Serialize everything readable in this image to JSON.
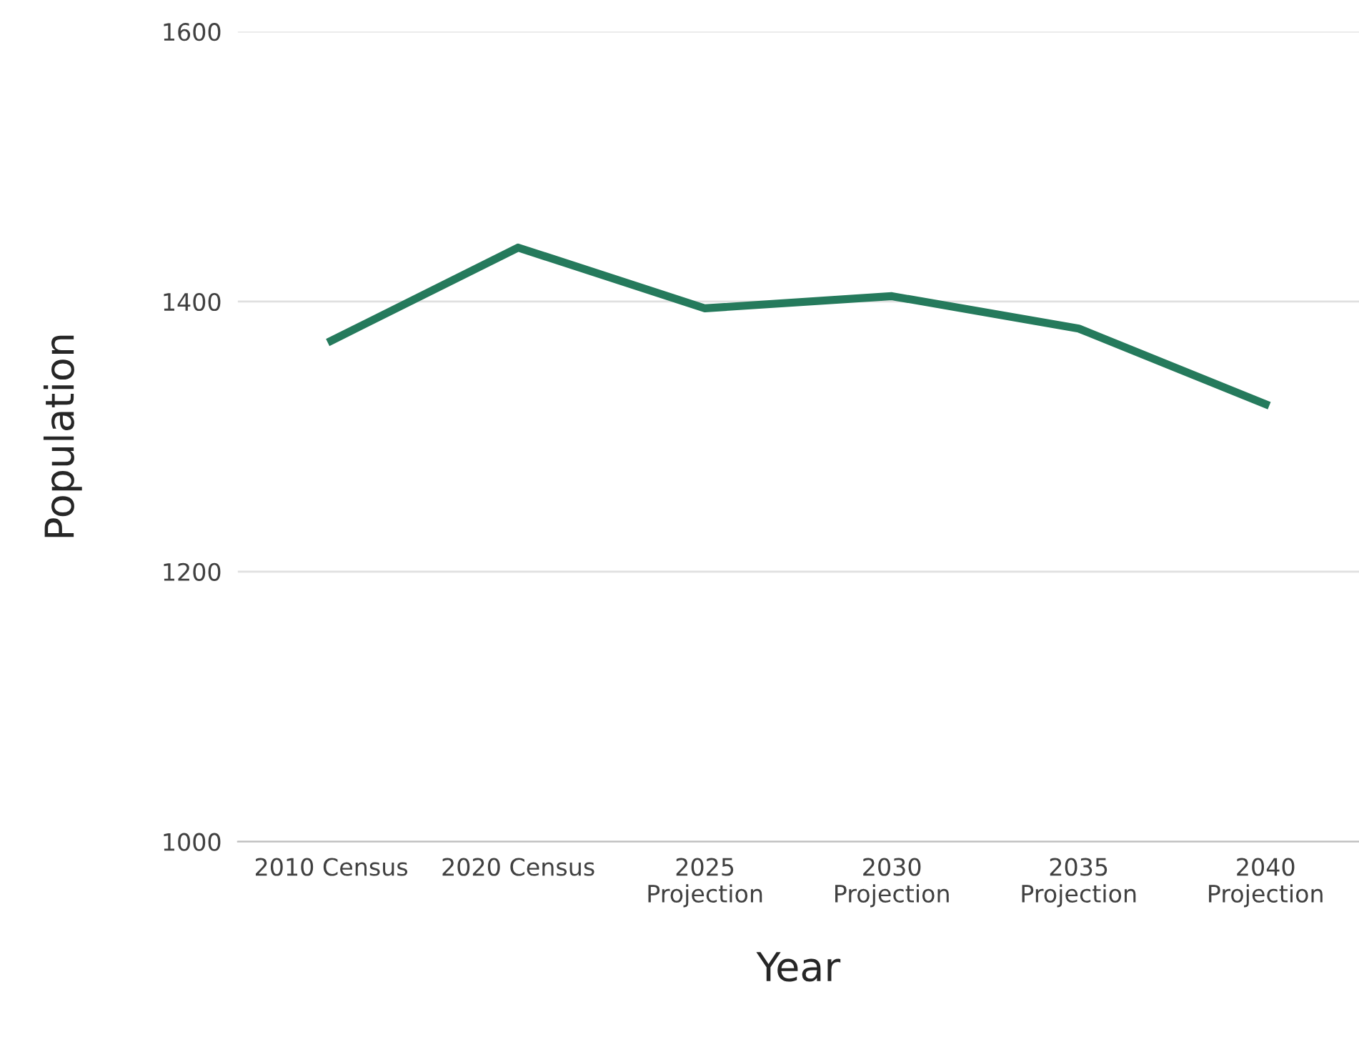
{
  "chart_data": {
    "type": "line",
    "xlabel": "Year",
    "ylabel": "Population",
    "categories": [
      "2010 Census",
      "2020 Census",
      "2025\nProjection",
      "2030\nProjection",
      "2035\nProjection",
      "2040\nProjection"
    ],
    "series": [
      {
        "color": "#257a5c",
        "values": [
          1371,
          1440,
          1395,
          1404,
          1380,
          1324
        ]
      }
    ],
    "ylim": [
      1000,
      1600
    ],
    "yticks": [
      1000,
      1200,
      1400,
      1600
    ],
    "grid": "y",
    "line_style": "solid",
    "marker": "none"
  }
}
